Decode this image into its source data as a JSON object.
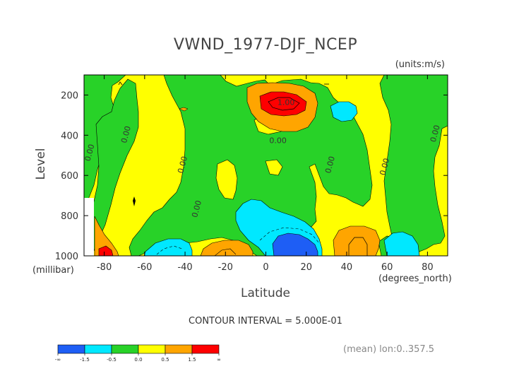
{
  "chart_data": {
    "type": "heatmap",
    "title": "VWND_1977-DJF_NCEP",
    "units": "(units:m/s)",
    "xlabel": "Latitude",
    "xunits": "(degrees_north)",
    "ylabel": "Level",
    "yunits": "(millibar)",
    "xlim": [
      -90,
      90
    ],
    "ylim": [
      1000,
      100
    ],
    "x_ticks": [
      -80,
      -60,
      -40,
      -20,
      0,
      20,
      40,
      60,
      80
    ],
    "y_ticks": [
      200,
      400,
      600,
      800,
      1000
    ],
    "contour_interval_text": "CONTOUR INTERVAL = 5.000E-01",
    "mean_text": "(mean) lon:0..357.5",
    "contour_labels": [
      {
        "text": "0.00",
        "lat": -86,
        "lev": 490
      },
      {
        "text": "0.00",
        "lat": -68,
        "lev": 400
      },
      {
        "text": "0.00",
        "lat": -40,
        "lev": 550
      },
      {
        "text": "0.00",
        "lat": -33,
        "lev": 770
      },
      {
        "text": "0.00",
        "lat": 6,
        "lev": 440
      },
      {
        "text": "1.00",
        "lat": 10,
        "lev": 250
      },
      {
        "text": "0.00",
        "lat": 33,
        "lev": 550
      },
      {
        "text": "0.00",
        "lat": 60,
        "lev": 560
      },
      {
        "text": "0.00",
        "lat": 85,
        "lev": 395
      }
    ],
    "legend": {
      "colors": [
        "#1e5ef5",
        "#00e8ff",
        "#28d228",
        "#ffff00",
        "#ffa500",
        "#ff0000"
      ],
      "labels": [
        "-∞",
        "-1.5",
        "-0.5",
        "0.0",
        "0.5",
        "1.5",
        "∞"
      ]
    }
  }
}
